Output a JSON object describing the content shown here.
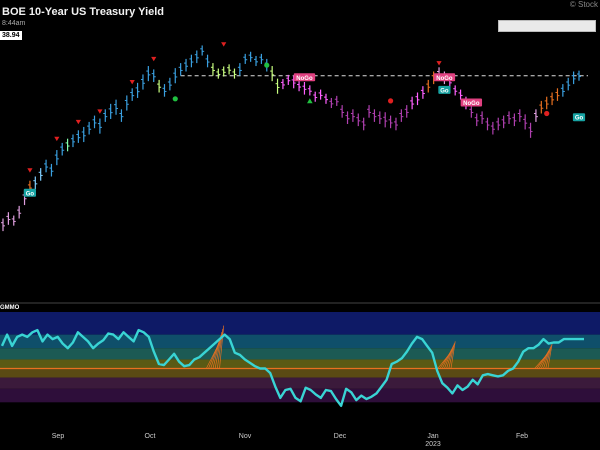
{
  "header": {
    "title": "BOE 10-Year US Treasury Yield",
    "time": "8:44am",
    "last_price": "38.94",
    "watermark": "© Stock"
  },
  "oscillator": {
    "name": "GMMO"
  },
  "colors": {
    "bg": "#000000",
    "dashed": "#dddddd",
    "osc_line": "#39d4d4",
    "osc_zero": "#e87020",
    "signal_red": "#e02020",
    "signal_green": "#20c040",
    "label_go": "#17a3a3",
    "label_nogo": "#e04080"
  },
  "chart_data": [
    {
      "type": "ohlc",
      "title": "BOE 10-Year US Treasury Yield",
      "x_ticks": [
        "Sep",
        "Oct",
        "Nov",
        "Dec",
        "2023",
        "Feb"
      ],
      "x_tick_sub": {
        "index": 4,
        "top": "Jan"
      },
      "ylim": [
        0,
        100
      ],
      "resistance_level": 83,
      "bars": [
        {
          "i": 0,
          "c": 12,
          "r": 5,
          "col": "#e0a0e0"
        },
        {
          "i": 1,
          "c": 15,
          "r": 5,
          "col": "#e0a0e0"
        },
        {
          "i": 2,
          "c": 14,
          "r": 4,
          "col": "#e0a0e0"
        },
        {
          "i": 3,
          "c": 18,
          "r": 5,
          "col": "#e0a0e0"
        },
        {
          "i": 4,
          "c": 25,
          "r": 6,
          "col": "#e0a0e0"
        },
        {
          "i": 5,
          "c": 30,
          "r": 5,
          "col": "#e87020"
        },
        {
          "i": 6,
          "c": 32,
          "r": 5,
          "col": "#80d0ff"
        },
        {
          "i": 7,
          "c": 36,
          "r": 5,
          "col": "#80d0ff"
        },
        {
          "i": 8,
          "c": 40,
          "r": 5,
          "col": "#3aa0e0"
        },
        {
          "i": 9,
          "c": 38,
          "r": 5,
          "col": "#3aa0e0"
        },
        {
          "i": 10,
          "c": 44,
          "r": 6,
          "col": "#3aa0e0"
        },
        {
          "i": 11,
          "c": 48,
          "r": 5,
          "col": "#3aa0e0"
        },
        {
          "i": 12,
          "c": 50,
          "r": 5,
          "col": "#80ffaa"
        },
        {
          "i": 13,
          "c": 52,
          "r": 5,
          "col": "#3aa0e0"
        },
        {
          "i": 14,
          "c": 54,
          "r": 5,
          "col": "#3aa0e0"
        },
        {
          "i": 15,
          "c": 55,
          "r": 6,
          "col": "#3aa0e0"
        },
        {
          "i": 16,
          "c": 58,
          "r": 5,
          "col": "#3aa0e0"
        },
        {
          "i": 17,
          "c": 61,
          "r": 5,
          "col": "#3aa0e0"
        },
        {
          "i": 18,
          "c": 59,
          "r": 6,
          "col": "#3aa0e0"
        },
        {
          "i": 19,
          "c": 64,
          "r": 5,
          "col": "#3aa0e0"
        },
        {
          "i": 20,
          "c": 66,
          "r": 6,
          "col": "#3aa0e0"
        },
        {
          "i": 21,
          "c": 68,
          "r": 6,
          "col": "#3aa0e0"
        },
        {
          "i": 22,
          "c": 64,
          "r": 5,
          "col": "#3aa0e0"
        },
        {
          "i": 23,
          "c": 70,
          "r": 6,
          "col": "#3aa0e0"
        },
        {
          "i": 24,
          "c": 74,
          "r": 5,
          "col": "#3aa0e0"
        },
        {
          "i": 25,
          "c": 76,
          "r": 6,
          "col": "#3aa0e0"
        },
        {
          "i": 26,
          "c": 80,
          "r": 6,
          "col": "#3aa0e0"
        },
        {
          "i": 27,
          "c": 84,
          "r": 6,
          "col": "#3aa0e0"
        },
        {
          "i": 28,
          "c": 83,
          "r": 5,
          "col": "#3aa0e0"
        },
        {
          "i": 29,
          "c": 78,
          "r": 5,
          "col": "#c8ff80"
        },
        {
          "i": 30,
          "c": 76,
          "r": 5,
          "col": "#3aa0e0"
        },
        {
          "i": 31,
          "c": 79,
          "r": 5,
          "col": "#3aa0e0"
        },
        {
          "i": 32,
          "c": 83,
          "r": 6,
          "col": "#3aa0e0"
        },
        {
          "i": 33,
          "c": 86,
          "r": 5,
          "col": "#3aa0e0"
        },
        {
          "i": 34,
          "c": 88,
          "r": 5,
          "col": "#3aa0e0"
        },
        {
          "i": 35,
          "c": 90,
          "r": 5,
          "col": "#3aa0e0"
        },
        {
          "i": 36,
          "c": 92,
          "r": 5,
          "col": "#3aa0e0"
        },
        {
          "i": 37,
          "c": 95,
          "r": 4,
          "col": "#3aa0e0"
        },
        {
          "i": 38,
          "c": 90,
          "r": 5,
          "col": "#3aa0e0"
        },
        {
          "i": 39,
          "c": 86,
          "r": 5,
          "col": "#c8ff80"
        },
        {
          "i": 40,
          "c": 84,
          "r": 4,
          "col": "#c8ff80"
        },
        {
          "i": 41,
          "c": 85,
          "r": 4,
          "col": "#c8ff80"
        },
        {
          "i": 42,
          "c": 86,
          "r": 4,
          "col": "#c8ff80"
        },
        {
          "i": 43,
          "c": 84,
          "r": 4,
          "col": "#c8ff80"
        },
        {
          "i": 44,
          "c": 86,
          "r": 5,
          "col": "#3aa0e0"
        },
        {
          "i": 45,
          "c": 91,
          "r": 4,
          "col": "#3aa0e0"
        },
        {
          "i": 46,
          "c": 92,
          "r": 4,
          "col": "#3aa0e0"
        },
        {
          "i": 47,
          "c": 90,
          "r": 4,
          "col": "#3aa0e0"
        },
        {
          "i": 48,
          "c": 91,
          "r": 4,
          "col": "#3aa0e0"
        },
        {
          "i": 49,
          "c": 88,
          "r": 5,
          "col": "#3aa0e0"
        },
        {
          "i": 50,
          "c": 84,
          "r": 6,
          "col": "#c8ff80"
        },
        {
          "i": 51,
          "c": 78,
          "r": 6,
          "col": "#c8ff80"
        },
        {
          "i": 52,
          "c": 79,
          "r": 4,
          "col": "#ff60ff"
        },
        {
          "i": 53,
          "c": 81,
          "r": 4,
          "col": "#ff60ff"
        },
        {
          "i": 54,
          "c": 80,
          "r": 5,
          "col": "#ff60ff"
        },
        {
          "i": 55,
          "c": 78,
          "r": 4,
          "col": "#ff60ff"
        },
        {
          "i": 56,
          "c": 77,
          "r": 5,
          "col": "#ff60ff"
        },
        {
          "i": 57,
          "c": 76,
          "r": 4,
          "col": "#ff60ff"
        },
        {
          "i": 58,
          "c": 73,
          "r": 4,
          "col": "#ff60ff"
        },
        {
          "i": 59,
          "c": 74,
          "r": 4,
          "col": "#ff60ff"
        },
        {
          "i": 60,
          "c": 72,
          "r": 4,
          "col": "#ff60ff"
        },
        {
          "i": 61,
          "c": 70,
          "r": 4,
          "col": "#b040b0"
        },
        {
          "i": 62,
          "c": 71,
          "r": 4,
          "col": "#b040b0"
        },
        {
          "i": 63,
          "c": 66,
          "r": 5,
          "col": "#b040b0"
        },
        {
          "i": 64,
          "c": 63,
          "r": 5,
          "col": "#b040b0"
        },
        {
          "i": 65,
          "c": 64,
          "r": 5,
          "col": "#b040b0"
        },
        {
          "i": 66,
          "c": 62,
          "r": 5,
          "col": "#b040b0"
        },
        {
          "i": 67,
          "c": 60,
          "r": 5,
          "col": "#b040b0"
        },
        {
          "i": 68,
          "c": 66,
          "r": 5,
          "col": "#b040b0"
        },
        {
          "i": 69,
          "c": 64,
          "r": 5,
          "col": "#b040b0"
        },
        {
          "i": 70,
          "c": 63,
          "r": 5,
          "col": "#b040b0"
        },
        {
          "i": 71,
          "c": 62,
          "r": 6,
          "col": "#b040b0"
        },
        {
          "i": 72,
          "c": 61,
          "r": 5,
          "col": "#b040b0"
        },
        {
          "i": 73,
          "c": 60,
          "r": 5,
          "col": "#b040b0"
        },
        {
          "i": 74,
          "c": 64,
          "r": 5,
          "col": "#b040b0"
        },
        {
          "i": 75,
          "c": 66,
          "r": 5,
          "col": "#b040b0"
        },
        {
          "i": 76,
          "c": 70,
          "r": 5,
          "col": "#ff60ff"
        },
        {
          "i": 77,
          "c": 72,
          "r": 5,
          "col": "#ff60ff"
        },
        {
          "i": 78,
          "c": 75,
          "r": 5,
          "col": "#ff60ff"
        },
        {
          "i": 79,
          "c": 78,
          "r": 5,
          "col": "#e87020"
        },
        {
          "i": 80,
          "c": 82,
          "r": 5,
          "col": "#e87020"
        },
        {
          "i": 81,
          "c": 84,
          "r": 5,
          "col": "#e0a0e0"
        },
        {
          "i": 82,
          "c": 82,
          "r": 5,
          "col": "#e0a0e0"
        },
        {
          "i": 83,
          "c": 80,
          "r": 4,
          "col": "#ff60ff"
        },
        {
          "i": 84,
          "c": 76,
          "r": 4,
          "col": "#ff60ff"
        },
        {
          "i": 85,
          "c": 74,
          "r": 4,
          "col": "#ff60ff"
        },
        {
          "i": 86,
          "c": 70,
          "r": 5,
          "col": "#ff60ff"
        },
        {
          "i": 87,
          "c": 66,
          "r": 5,
          "col": "#b040b0"
        },
        {
          "i": 88,
          "c": 62,
          "r": 5,
          "col": "#b040b0"
        },
        {
          "i": 89,
          "c": 63,
          "r": 5,
          "col": "#b040b0"
        },
        {
          "i": 90,
          "c": 60,
          "r": 5,
          "col": "#b040b0"
        },
        {
          "i": 91,
          "c": 58,
          "r": 5,
          "col": "#b040b0"
        },
        {
          "i": 92,
          "c": 60,
          "r": 5,
          "col": "#b040b0"
        },
        {
          "i": 93,
          "c": 61,
          "r": 5,
          "col": "#b040b0"
        },
        {
          "i": 94,
          "c": 63,
          "r": 5,
          "col": "#b040b0"
        },
        {
          "i": 95,
          "c": 62,
          "r": 5,
          "col": "#b040b0"
        },
        {
          "i": 96,
          "c": 64,
          "r": 5,
          "col": "#b040b0"
        },
        {
          "i": 97,
          "c": 61,
          "r": 6,
          "col": "#b040b0"
        },
        {
          "i": 98,
          "c": 57,
          "r": 6,
          "col": "#b040b0"
        },
        {
          "i": 99,
          "c": 64,
          "r": 5,
          "col": "#e0a0e0"
        },
        {
          "i": 100,
          "c": 68,
          "r": 5,
          "col": "#e87020"
        },
        {
          "i": 101,
          "c": 70,
          "r": 5,
          "col": "#e87020"
        },
        {
          "i": 102,
          "c": 72,
          "r": 5,
          "col": "#e87020"
        },
        {
          "i": 103,
          "c": 74,
          "r": 5,
          "col": "#e87020"
        },
        {
          "i": 104,
          "c": 76,
          "r": 5,
          "col": "#3aa0e0"
        },
        {
          "i": 105,
          "c": 79,
          "r": 5,
          "col": "#3aa0e0"
        },
        {
          "i": 106,
          "c": 82,
          "r": 5,
          "col": "#3aa0e0"
        },
        {
          "i": 107,
          "c": 83,
          "r": 4,
          "col": "#3aa0e0"
        }
      ],
      "markers": [
        {
          "i": 5,
          "y": 38,
          "kind": "tri-down",
          "color": "#e02020"
        },
        {
          "i": 10,
          "y": 53,
          "kind": "tri-down",
          "color": "#e02020"
        },
        {
          "i": 14,
          "y": 61,
          "kind": "tri-down",
          "color": "#e02020"
        },
        {
          "i": 18,
          "y": 66,
          "kind": "tri-down",
          "color": "#e02020"
        },
        {
          "i": 24,
          "y": 80,
          "kind": "tri-down",
          "color": "#e02020"
        },
        {
          "i": 28,
          "y": 91,
          "kind": "tri-down",
          "color": "#e02020"
        },
        {
          "i": 32,
          "y": 72,
          "kind": "dot",
          "color": "#20c040"
        },
        {
          "i": 41,
          "y": 98,
          "kind": "tri-down",
          "color": "#e02020"
        },
        {
          "i": 49,
          "y": 88,
          "kind": "dot",
          "color": "#20c040"
        },
        {
          "i": 57,
          "y": 71,
          "kind": "tri-up",
          "color": "#20c040"
        },
        {
          "i": 72,
          "y": 71,
          "kind": "dot",
          "color": "#e02020"
        },
        {
          "i": 81,
          "y": 89,
          "kind": "tri-down",
          "color": "#e02020"
        },
        {
          "i": 101,
          "y": 65,
          "kind": "dot",
          "color": "#e02020"
        }
      ],
      "labels": [
        {
          "i": 5,
          "y": 27,
          "text": "Go",
          "type": "go"
        },
        {
          "i": 56,
          "y": 82,
          "text": "NoGo",
          "type": "nogo"
        },
        {
          "i": 82,
          "y": 82,
          "text": "NoGo",
          "type": "nogo"
        },
        {
          "i": 82,
          "y": 76,
          "text": "Go",
          "type": "go"
        },
        {
          "i": 87,
          "y": 70,
          "text": "NoGo",
          "type": "nogo"
        },
        {
          "i": 107,
          "y": 63,
          "text": "Go",
          "type": "go"
        }
      ]
    },
    {
      "type": "line",
      "name": "GMMO",
      "ylim": [
        -5,
        5
      ],
      "zero_line": 0,
      "bands": [
        {
          "from": 3,
          "to": 5,
          "color": "#0e1a66"
        },
        {
          "from": 1.8,
          "to": 3,
          "color": "#0f4f6a"
        },
        {
          "from": 0.8,
          "to": 1.8,
          "color": "#1c5a54"
        },
        {
          "from": 0,
          "to": 0.8,
          "color": "#5a5a14"
        },
        {
          "from": -0.8,
          "to": 0,
          "color": "#5a4a14"
        },
        {
          "from": -1.8,
          "to": -0.8,
          "color": "#3b1a3b"
        },
        {
          "from": -3,
          "to": -1.8,
          "color": "#2e0e3a"
        },
        {
          "from": -5,
          "to": -3,
          "color": "#000000"
        }
      ],
      "values": [
        2,
        3,
        2,
        2.8,
        3,
        2.8,
        3.2,
        3.4,
        2.4,
        3,
        2.6,
        2.8,
        2.2,
        1.8,
        2.3,
        3.2,
        2.8,
        2.4,
        1.8,
        2.2,
        2.5,
        3.1,
        3,
        2.6,
        3.2,
        2.8,
        2.4,
        3.4,
        3.2,
        2.8,
        1.5,
        0.4,
        0.3,
        0.8,
        1.3,
        0.6,
        0.2,
        0.3,
        0.8,
        1,
        1.4,
        1.8,
        2.2,
        2.6,
        3,
        2.6,
        1.4,
        1.2,
        0.8,
        0.5,
        0.2,
        0,
        0,
        -0.4,
        -1.6,
        -2.6,
        -1.9,
        -1.8,
        -2.6,
        -2.9,
        -1.7,
        -1.9,
        -2.3,
        -2.6,
        -1.9,
        -2,
        -2.7,
        -3.3,
        -1.8,
        -2.1,
        -2.8,
        -2.4,
        -2.7,
        -2.5,
        -2.2,
        -1.6,
        -1,
        0.4,
        0.6,
        0.9,
        1.5,
        2.2,
        2.8,
        2.6,
        2,
        1.4,
        -0.2,
        -1.3,
        -1.7,
        -2.2,
        -1.5,
        -1.9,
        -1.6,
        -1,
        -1.4,
        -0.6,
        -0.5,
        -0.6,
        -0.7,
        -0.6,
        -0.2,
        0,
        0.6,
        1.5,
        1.8,
        1.8,
        2.1,
        2.6,
        2.2,
        2.3,
        2.3,
        2.6,
        2.6,
        2.6,
        2.6,
        2.6
      ],
      "fans": [
        {
          "i": 40,
          "peak": 3.8,
          "color": "#e87020"
        },
        {
          "i": 83,
          "peak": 2.4,
          "color": "#e87020"
        },
        {
          "i": 101,
          "peak": 2.2,
          "color": "#e87020"
        }
      ]
    }
  ]
}
